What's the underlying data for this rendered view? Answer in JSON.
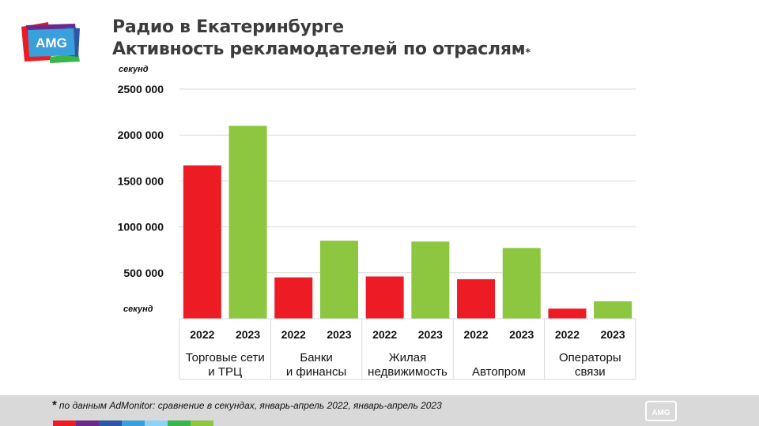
{
  "header": {
    "logo_text": "AMG",
    "title_line1": "Радио в Екатеринбурге",
    "title_line2": "Активность рекламодателей по отраслям",
    "title_asterisk": "*"
  },
  "units": {
    "top": "секунд",
    "bottom": "секунд"
  },
  "footer": {
    "star": "*",
    "note": "по данным AdMonitor: сравнение в секундах, январь-апрель 2022, январь-апрель 2023",
    "logo_text": "AMG",
    "stripe_colors": [
      "#ed1c24",
      "#6a2a8c",
      "#2e56a6",
      "#3aa0dc",
      "#8fd3f4",
      "#39b54a",
      "#8dc63f"
    ]
  },
  "colors": {
    "series_2022": "#ed1c24",
    "series_2023": "#8dc63f",
    "grid": "#d9d9d9",
    "text": "#111111"
  },
  "chart_data": {
    "type": "bar",
    "title": "Активность рекламодателей по отраслям",
    "ylabel": "секунд",
    "ylim": [
      0,
      2500000
    ],
    "yticks": [
      500000,
      1000000,
      1500000,
      2000000,
      2500000
    ],
    "ytick_labels": [
      "500 000",
      "1000 000",
      "1500 000",
      "2000 000",
      "2500 000"
    ],
    "grid": true,
    "categories": [
      [
        "Торговые сети",
        "и ТРЦ"
      ],
      [
        "Банки",
        "и финансы"
      ],
      [
        "Жилая",
        "недвижимость"
      ],
      [
        "Автопром"
      ],
      [
        "Операторы",
        "связи"
      ]
    ],
    "series": [
      {
        "name": "2022",
        "values": [
          1670000,
          450000,
          460000,
          430000,
          110000
        ]
      },
      {
        "name": "2023",
        "values": [
          2100000,
          850000,
          840000,
          770000,
          190000
        ]
      }
    ]
  }
}
